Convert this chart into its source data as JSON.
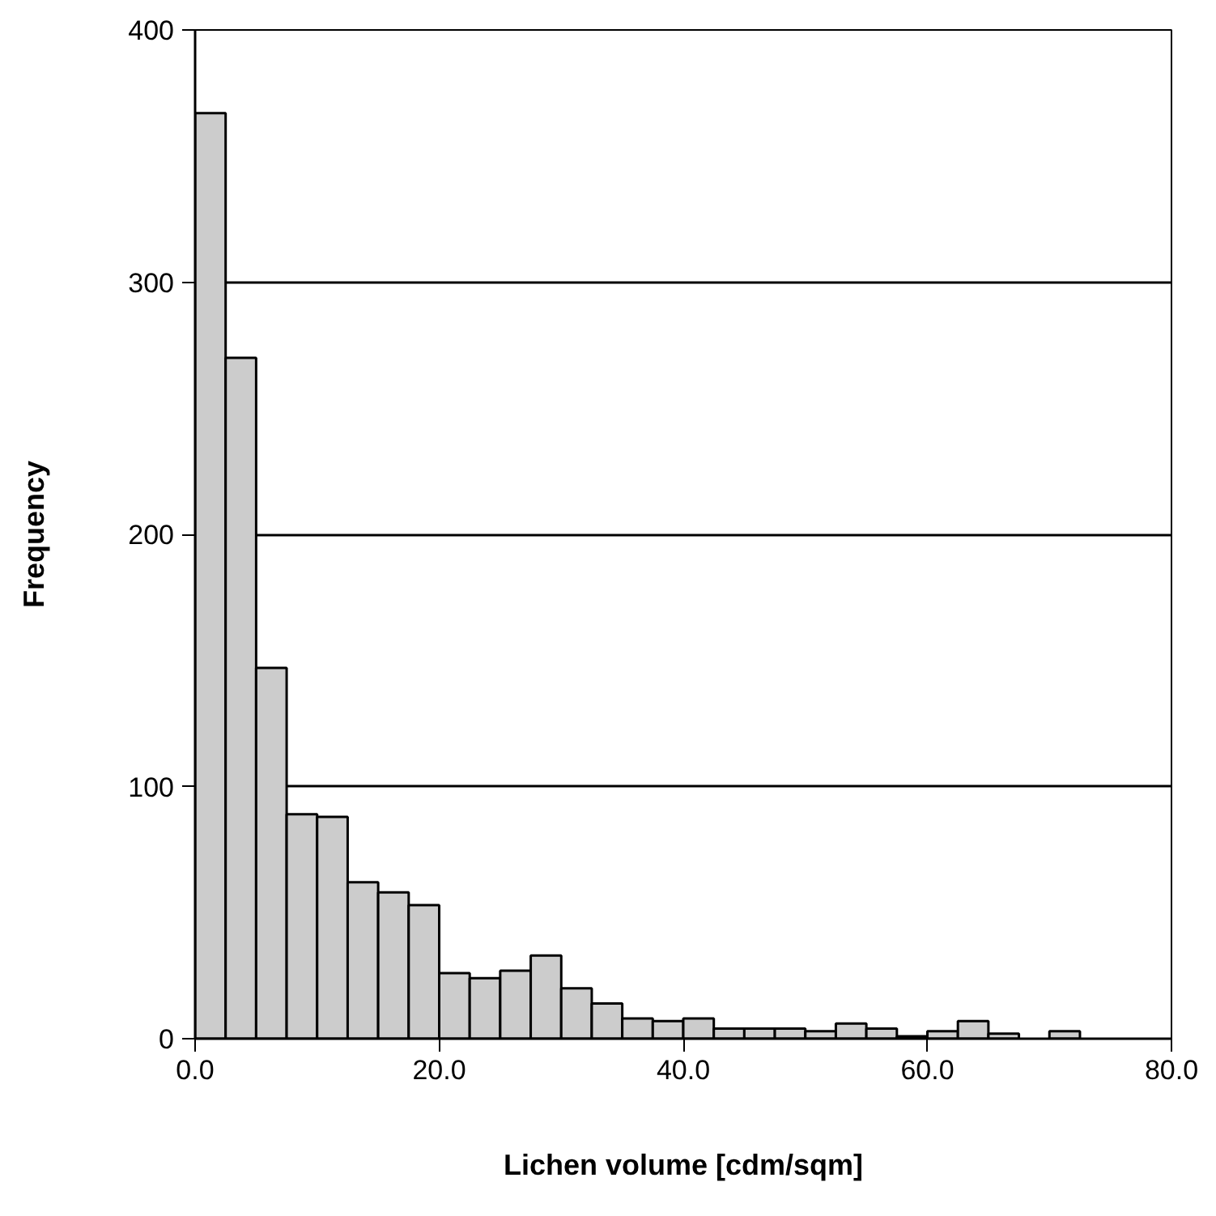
{
  "chart_data": {
    "type": "histogram",
    "xlabel": "Lichen volume [cdm/sqm]",
    "ylabel": "Frequency",
    "bins": [
      0,
      2.5,
      5,
      7.5,
      10,
      12.5,
      15,
      17.5,
      20,
      22.5,
      25,
      27.5,
      30,
      32.5,
      35,
      37.5,
      40,
      42.5,
      45,
      47.5,
      50,
      52.5,
      55,
      57.5,
      60,
      62.5,
      65,
      67.5,
      70,
      72.5,
      75,
      77.5,
      80
    ],
    "values": [
      367,
      270,
      147,
      89,
      88,
      62,
      58,
      53,
      26,
      24,
      27,
      33,
      20,
      14,
      8,
      7,
      8,
      4,
      4,
      4,
      3,
      6,
      4,
      1,
      3,
      7,
      2,
      0,
      3,
      0,
      0,
      0
    ],
    "color": "#cccccc",
    "xlim": [
      0,
      80
    ],
    "ylim": [
      0,
      400
    ],
    "xticks": [
      {
        "value": 0,
        "label": "0.0"
      },
      {
        "value": 20,
        "label": "20.0"
      },
      {
        "value": 40,
        "label": "40.0"
      },
      {
        "value": 60,
        "label": "60.0"
      },
      {
        "value": 80,
        "label": "80.0"
      }
    ],
    "yticks": [
      0,
      100,
      200,
      300,
      400
    ],
    "grid": "y"
  }
}
